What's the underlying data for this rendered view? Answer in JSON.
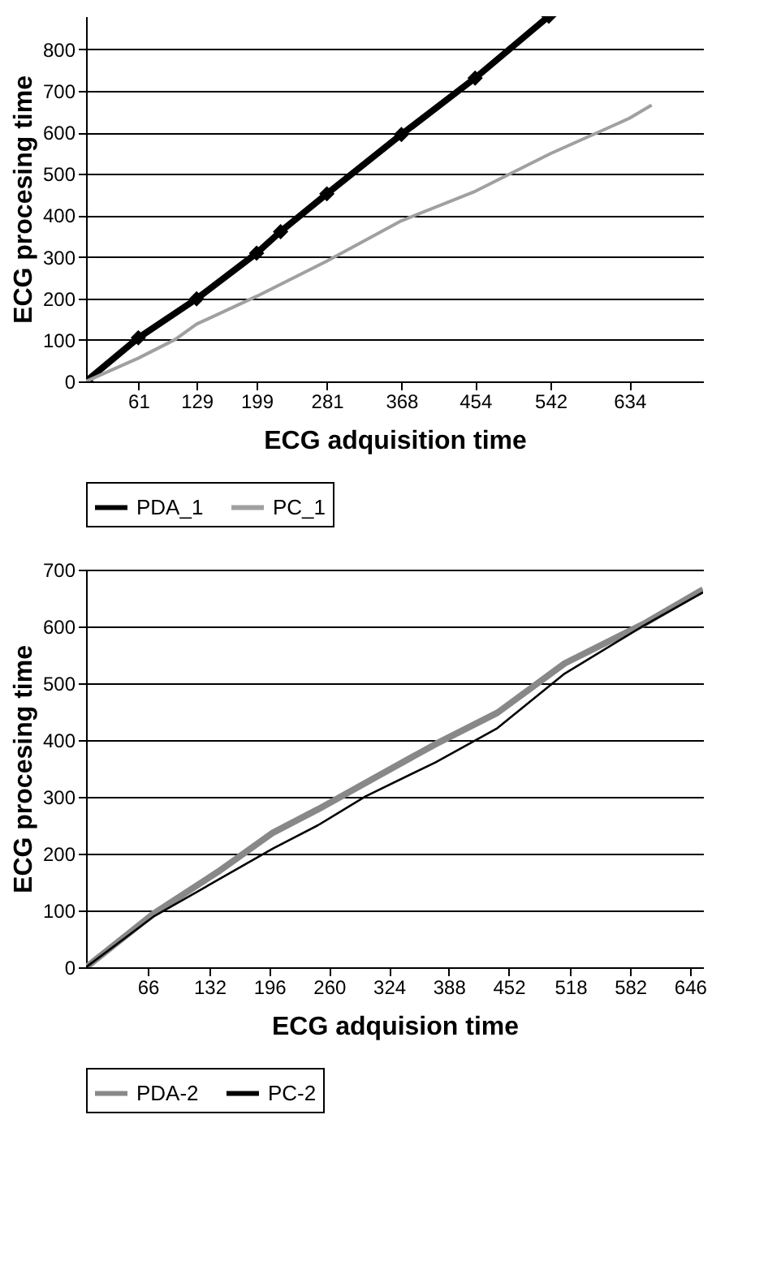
{
  "chart_data": [
    {
      "type": "line",
      "xlabel": "ECG adquisition time",
      "ylabel": "ECG procesing time",
      "xlim": [
        0,
        720
      ],
      "xticks": [
        61,
        129,
        199,
        281,
        368,
        454,
        542,
        634
      ],
      "ylim": [
        0,
        880
      ],
      "yticks": [
        0,
        100,
        200,
        300,
        400,
        500,
        600,
        700,
        800
      ],
      "grid": "y",
      "legend": "bottom",
      "series": [
        {
          "name": "PDA_1",
          "color": "#000000",
          "marker": "diamond",
          "x": [
            0,
            61,
            129,
            199,
            227,
            281,
            368,
            454,
            540
          ],
          "values": [
            0,
            105,
            199,
            309,
            361,
            452,
            595,
            731,
            880
          ]
        },
        {
          "name": "PC_1",
          "color": "#a0a0a0",
          "x": [
            0,
            61,
            104,
            129,
            199,
            281,
            368,
            454,
            542,
            634,
            660
          ],
          "values": [
            0,
            56,
            101,
            138,
            205,
            290,
            387,
            458,
            549,
            634,
            666
          ]
        }
      ]
    },
    {
      "type": "line",
      "xlabel": "ECG adquision time",
      "ylabel": "ECG procesing time",
      "xlim": [
        0,
        660
      ],
      "xticks": [
        66,
        132,
        196,
        260,
        324,
        388,
        452,
        518,
        582,
        646
      ],
      "ylim": [
        0,
        700
      ],
      "yticks": [
        0,
        100,
        200,
        300,
        400,
        500,
        600,
        700
      ],
      "grid": "y",
      "legend": "bottom",
      "series": [
        {
          "name": "PDA-2",
          "color": "#888888",
          "x": [
            0,
            72,
            141,
            200,
            248,
            308,
            374,
            440,
            512,
            596,
            660
          ],
          "values": [
            0,
            94,
            168,
            237,
            278,
            333,
            393,
            448,
            535,
            604,
            665
          ]
        },
        {
          "name": "PC-2",
          "color": "#000000",
          "x": [
            0,
            72,
            200,
            248,
            299,
            374,
            440,
            512,
            596,
            660
          ],
          "values": [
            0,
            89,
            209,
            250,
            301,
            361,
            421,
            517,
            601,
            660
          ]
        }
      ]
    }
  ]
}
